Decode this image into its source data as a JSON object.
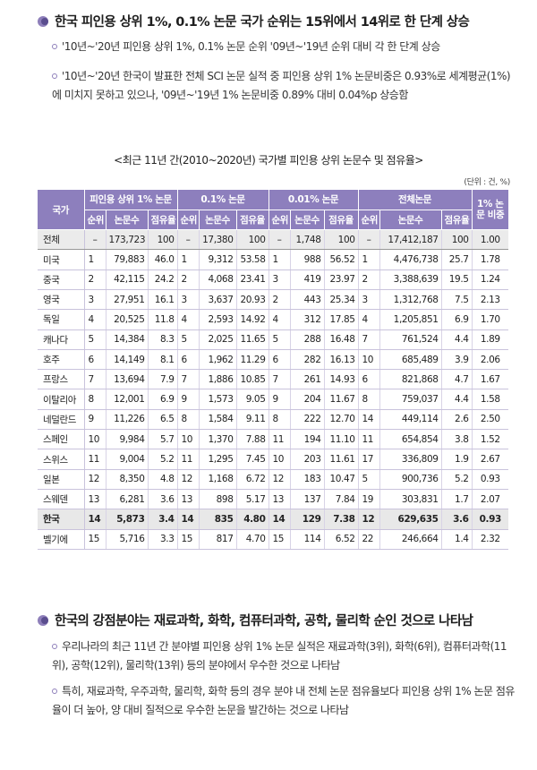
{
  "section1": {
    "heading": "한국 피인용 상위 1%, 0.1% 논문 국가 순위는 15위에서 14위로 한 단계 상승",
    "bullets": [
      "'10년~'20년 피인용 상위 1%, 0.1% 논문 순위 '09년~'19년 순위 대비 각 한 단계 상승",
      "'10년~'20년 한국이 발표한 전체 SCI 논문 실적 중 피인용 상위 1% 논문비중은 0.93%로 세계평균(1%)에 미치지 못하고 있으나, '09년~'19년 1% 논문비중 0.89% 대비 0.04%p 상승함"
    ]
  },
  "table": {
    "caption": "<최근 11년 간(2010~2020년) 국가별 피인용 상위 논문수 및 점유율>",
    "unit": "(단위 : 건, %)",
    "header_country": "국가",
    "groups": [
      "피인용 상위 1% 논문",
      "0.1% 논문",
      "0.01% 논문",
      "전체논문",
      "1% 논문 비중"
    ],
    "subheaders": {
      "rank": "순위",
      "count": "논문수",
      "share": "점유율"
    },
    "rows": [
      [
        "전체",
        "–",
        "173,723",
        "100",
        "–",
        "17,380",
        "100",
        "–",
        "1,748",
        "100",
        "–",
        "17,412,187",
        "100",
        "1.00"
      ],
      [
        "미국",
        "1",
        "79,883",
        "46.0",
        "1",
        "9,312",
        "53.58",
        "1",
        "988",
        "56.52",
        "1",
        "4,476,738",
        "25.7",
        "1.78"
      ],
      [
        "중국",
        "2",
        "42,115",
        "24.2",
        "2",
        "4,068",
        "23.41",
        "3",
        "419",
        "23.97",
        "2",
        "3,388,639",
        "19.5",
        "1.24"
      ],
      [
        "영국",
        "3",
        "27,951",
        "16.1",
        "3",
        "3,637",
        "20.93",
        "2",
        "443",
        "25.34",
        "3",
        "1,312,768",
        "7.5",
        "2.13"
      ],
      [
        "독일",
        "4",
        "20,525",
        "11.8",
        "4",
        "2,593",
        "14.92",
        "4",
        "312",
        "17.85",
        "4",
        "1,205,851",
        "6.9",
        "1.70"
      ],
      [
        "캐나다",
        "5",
        "14,384",
        "8.3",
        "5",
        "2,025",
        "11.65",
        "5",
        "288",
        "16.48",
        "7",
        "761,524",
        "4.4",
        "1.89"
      ],
      [
        "호주",
        "6",
        "14,149",
        "8.1",
        "6",
        "1,962",
        "11.29",
        "6",
        "282",
        "16.13",
        "10",
        "685,489",
        "3.9",
        "2.06"
      ],
      [
        "프랑스",
        "7",
        "13,694",
        "7.9",
        "7",
        "1,886",
        "10.85",
        "7",
        "261",
        "14.93",
        "6",
        "821,868",
        "4.7",
        "1.67"
      ],
      [
        "이탈리아",
        "8",
        "12,001",
        "6.9",
        "9",
        "1,573",
        "9.05",
        "9",
        "204",
        "11.67",
        "8",
        "759,037",
        "4.4",
        "1.58"
      ],
      [
        "네덜란드",
        "9",
        "11,226",
        "6.5",
        "8",
        "1,584",
        "9.11",
        "8",
        "222",
        "12.70",
        "14",
        "449,114",
        "2.6",
        "2.50"
      ],
      [
        "스페인",
        "10",
        "9,984",
        "5.7",
        "10",
        "1,370",
        "7.88",
        "11",
        "194",
        "11.10",
        "11",
        "654,854",
        "3.8",
        "1.52"
      ],
      [
        "스위스",
        "11",
        "9,004",
        "5.2",
        "11",
        "1,295",
        "7.45",
        "10",
        "203",
        "11.61",
        "17",
        "336,809",
        "1.9",
        "2.67"
      ],
      [
        "일본",
        "12",
        "8,350",
        "4.8",
        "12",
        "1,168",
        "6.72",
        "12",
        "183",
        "10.47",
        "5",
        "900,736",
        "5.2",
        "0.93"
      ],
      [
        "스웨덴",
        "13",
        "6,281",
        "3.6",
        "13",
        "898",
        "5.17",
        "13",
        "137",
        "7.84",
        "19",
        "303,831",
        "1.7",
        "2.07"
      ],
      [
        "한국",
        "14",
        "5,873",
        "3.4",
        "14",
        "835",
        "4.80",
        "14",
        "129",
        "7.38",
        "12",
        "629,635",
        "3.6",
        "0.93"
      ],
      [
        "벨기에",
        "15",
        "5,716",
        "3.3",
        "15",
        "817",
        "4.70",
        "15",
        "114",
        "6.52",
        "22",
        "246,664",
        "1.4",
        "2.32"
      ]
    ]
  },
  "section2": {
    "heading": "한국의 강점분야는 재료과학, 화학, 컴퓨터과학, 공학, 물리학 순인 것으로 나타남",
    "bullets": [
      "우리나라의 최근 11년 간 분야별 피인용 상위 1% 논문 실적은 재료과학(3위), 화학(6위), 컴퓨터과학(11위), 공학(12위), 물리학(13위) 등의 분야에서 우수한 것으로 나타남",
      "특히, 재료과학, 우주과학, 물리학, 화학 등의 경우 분야 내 전체 논문 점유율보다 피인용 상위 1% 논문 점유율이 더 높아, 양 대비 질적으로 우수한 논문을 발간하는 것으로 나타남"
    ]
  },
  "colors": {
    "header": "#8d7fbd",
    "bullet_mark": "#8e7fba",
    "highlight_row": "#e8e8e8"
  }
}
